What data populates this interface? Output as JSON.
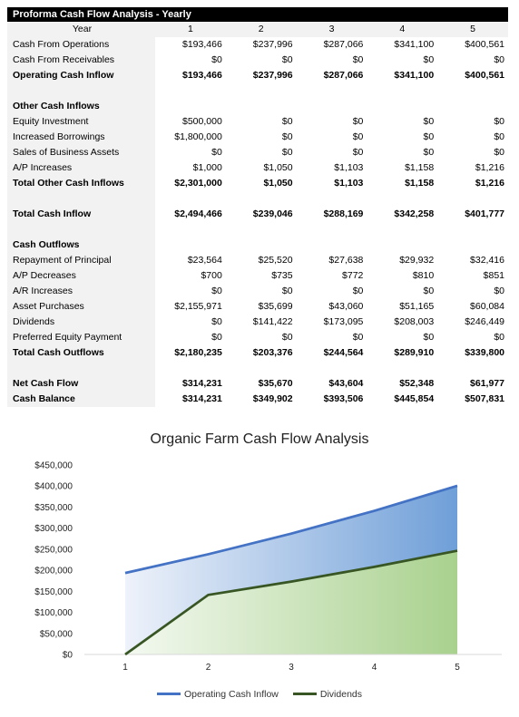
{
  "table": {
    "title": "Proforma Cash Flow Analysis - Yearly",
    "header": [
      "Year",
      "1",
      "2",
      "3",
      "4",
      "5"
    ],
    "rows": [
      {
        "label": "Cash From Operations",
        "values": [
          "$193,466",
          "$237,996",
          "$287,066",
          "$341,100",
          "$400,561"
        ],
        "bold": false
      },
      {
        "label": "Cash From Receivables",
        "values": [
          "$0",
          "$0",
          "$0",
          "$0",
          "$0"
        ],
        "bold": false
      },
      {
        "label": "Operating Cash Inflow",
        "values": [
          "$193,466",
          "$237,996",
          "$287,066",
          "$341,100",
          "$400,561"
        ],
        "bold": true
      },
      {
        "blank": true
      },
      {
        "label": "Other Cash Inflows",
        "values": [
          "",
          "",
          "",
          "",
          ""
        ],
        "bold": true
      },
      {
        "label": "Equity Investment",
        "values": [
          "$500,000",
          "$0",
          "$0",
          "$0",
          "$0"
        ],
        "bold": false
      },
      {
        "label": "Increased Borrowings",
        "values": [
          "$1,800,000",
          "$0",
          "$0",
          "$0",
          "$0"
        ],
        "bold": false
      },
      {
        "label": "Sales of Business Assets",
        "values": [
          "$0",
          "$0",
          "$0",
          "$0",
          "$0"
        ],
        "bold": false
      },
      {
        "label": "A/P Increases",
        "values": [
          "$1,000",
          "$1,050",
          "$1,103",
          "$1,158",
          "$1,216"
        ],
        "bold": false
      },
      {
        "label": "Total Other Cash Inflows",
        "values": [
          "$2,301,000",
          "$1,050",
          "$1,103",
          "$1,158",
          "$1,216"
        ],
        "bold": true
      },
      {
        "blank": true
      },
      {
        "label": "Total Cash Inflow",
        "values": [
          "$2,494,466",
          "$239,046",
          "$288,169",
          "$342,258",
          "$401,777"
        ],
        "bold": true
      },
      {
        "blank": true
      },
      {
        "label": "Cash Outflows",
        "values": [
          "",
          "",
          "",
          "",
          ""
        ],
        "bold": true
      },
      {
        "label": "Repayment of Principal",
        "values": [
          "$23,564",
          "$25,520",
          "$27,638",
          "$29,932",
          "$32,416"
        ],
        "bold": false
      },
      {
        "label": "A/P Decreases",
        "values": [
          "$700",
          "$735",
          "$772",
          "$810",
          "$851"
        ],
        "bold": false
      },
      {
        "label": "A/R Increases",
        "values": [
          "$0",
          "$0",
          "$0",
          "$0",
          "$0"
        ],
        "bold": false
      },
      {
        "label": "Asset Purchases",
        "values": [
          "$2,155,971",
          "$35,699",
          "$43,060",
          "$51,165",
          "$60,084"
        ],
        "bold": false
      },
      {
        "label": "Dividends",
        "values": [
          "$0",
          "$141,422",
          "$173,095",
          "$208,003",
          "$246,449"
        ],
        "bold": false
      },
      {
        "label": "Preferred Equity Payment",
        "values": [
          "$0",
          "$0",
          "$0",
          "$0",
          "$0"
        ],
        "bold": false
      },
      {
        "label": "Total Cash Outflows",
        "values": [
          "$2,180,235",
          "$203,376",
          "$244,564",
          "$289,910",
          "$339,800"
        ],
        "bold": true
      },
      {
        "blank": true
      },
      {
        "label": "Net Cash Flow",
        "values": [
          "$314,231",
          "$35,670",
          "$43,604",
          "$52,348",
          "$61,977"
        ],
        "bold": true
      },
      {
        "label": "Cash Balance",
        "values": [
          "$314,231",
          "$349,902",
          "$393,506",
          "$445,854",
          "$507,831"
        ],
        "bold": true
      }
    ]
  },
  "chart_data": {
    "type": "area",
    "title": "Organic Farm Cash Flow Analysis",
    "x": [
      1,
      2,
      3,
      4,
      5
    ],
    "x_tick_labels": [
      "1",
      "2",
      "3",
      "4",
      "5"
    ],
    "ylim": [
      0,
      450000
    ],
    "y_ticks": [
      0,
      50000,
      100000,
      150000,
      200000,
      250000,
      300000,
      350000,
      400000,
      450000
    ],
    "y_tick_labels": [
      "$0",
      "$50,000",
      "$100,000",
      "$150,000",
      "$200,000",
      "$250,000",
      "$300,000",
      "$350,000",
      "$400,000",
      "$450,000"
    ],
    "grid": false,
    "legend_position": "bottom",
    "series": [
      {
        "name": "Operating Cash Inflow",
        "values": [
          193466,
          237996,
          287066,
          341100,
          400561
        ],
        "line_color": "#4472c4",
        "fill_from": "#eef2fa",
        "fill_to": "#6f9fd8"
      },
      {
        "name": "Dividends",
        "values": [
          0,
          141422,
          173095,
          208003,
          246449
        ],
        "line_color": "#375623",
        "fill_from": "#f4f9f1",
        "fill_to": "#a9d18e"
      }
    ]
  }
}
